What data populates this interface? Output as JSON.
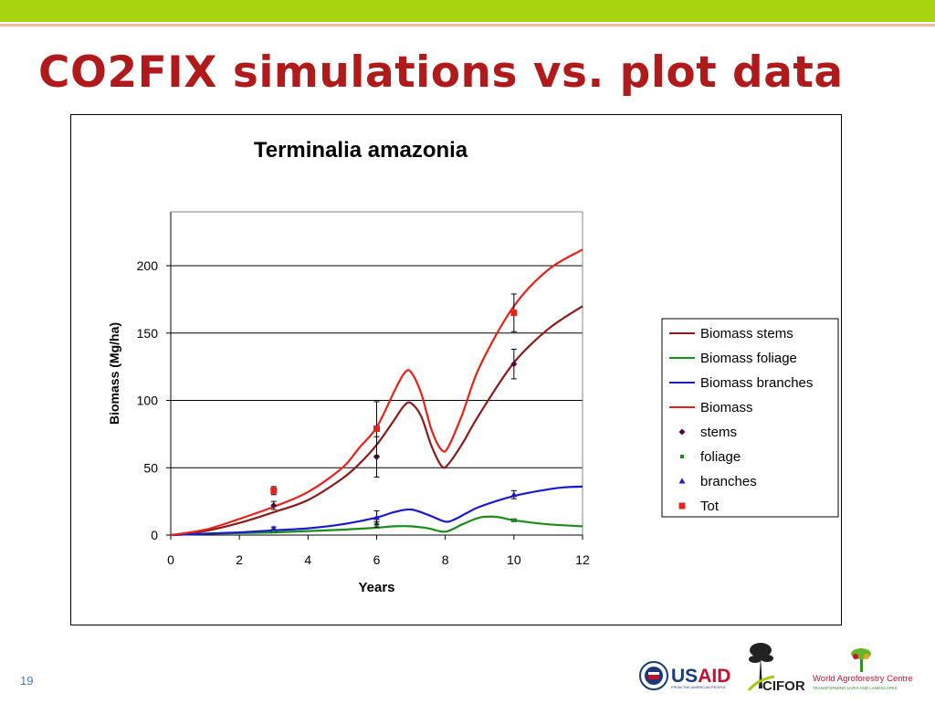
{
  "slide": {
    "title": "CO2FIX simulations vs. plot data",
    "page_number": "19",
    "accent_color": "#a8d40f",
    "title_color": "#b01a1a"
  },
  "logos": {
    "usaid": "USAID",
    "usaid_sub": "FROM THE AMERICAN PEOPLE",
    "cifor": "CIFOR",
    "icraf": "World Agroforestry Centre",
    "icraf_sub": "TRANSFORMING LIVES AND LANDSCAPES"
  },
  "chart_data": {
    "type": "line",
    "title": "Terminalia amazonia",
    "xlabel": "Years",
    "ylabel": "Biomass (Mg/ha)",
    "xlim": [
      0,
      12
    ],
    "ylim": [
      0,
      240
    ],
    "xticks": [
      0,
      2,
      4,
      6,
      8,
      10,
      12
    ],
    "yticks": [
      0,
      50,
      100,
      150,
      200
    ],
    "grid": "horizontal",
    "legend_position": "right",
    "series": [
      {
        "name": "Biomass stems",
        "kind": "line",
        "color": "#8b1a1a",
        "x": [
          0,
          1,
          2,
          3,
          4,
          5,
          5.5,
          6,
          6.5,
          6.8,
          7,
          7.3,
          7.6,
          7.9,
          8.1,
          8.5,
          9,
          10,
          11,
          12
        ],
        "y": [
          0,
          3,
          9,
          17,
          26,
          42,
          53,
          67,
          85,
          96,
          98,
          88,
          66,
          51,
          53,
          68,
          90,
          128,
          153,
          170
        ]
      },
      {
        "name": "Biomass foliage",
        "kind": "line",
        "color": "#1a8c1a",
        "x": [
          0,
          1,
          2,
          3,
          4,
          5,
          6,
          6.5,
          7,
          7.5,
          8,
          8.5,
          9,
          9.5,
          10,
          11,
          12
        ],
        "y": [
          0,
          1,
          1.5,
          2,
          3,
          4,
          5.5,
          6.5,
          6.5,
          5,
          2.5,
          8,
          13,
          13.5,
          11,
          8,
          6.5
        ]
      },
      {
        "name": "Biomass branches",
        "kind": "line",
        "color": "#1a1acc",
        "x": [
          0,
          1,
          2,
          3,
          4,
          5,
          6,
          6.5,
          7,
          7.5,
          8,
          8.3,
          8.6,
          9,
          10,
          11,
          11.5,
          12
        ],
        "y": [
          0,
          1,
          2,
          3.5,
          5,
          8,
          13,
          17,
          19,
          15,
          10,
          12,
          16,
          21,
          29,
          34,
          35.5,
          36
        ]
      },
      {
        "name": "Biomass",
        "kind": "line",
        "color": "#e8221a",
        "x": [
          0,
          1,
          2,
          3,
          4,
          5,
          5.5,
          6,
          6.5,
          6.8,
          7,
          7.3,
          7.6,
          7.9,
          8.1,
          8.5,
          9,
          10,
          11,
          12
        ],
        "y": [
          0,
          4,
          12,
          21,
          32,
          50,
          65,
          80,
          106,
          120,
          121,
          105,
          78,
          63,
          66,
          90,
          125,
          170,
          197,
          212
        ]
      },
      {
        "name": "stems",
        "kind": "marker",
        "marker": "diamond",
        "color": "#4a0a3a",
        "x": [
          3,
          6,
          10
        ],
        "y": [
          22,
          58,
          127
        ],
        "err": [
          3,
          15,
          11
        ]
      },
      {
        "name": "foliage",
        "kind": "marker",
        "marker": "square-small",
        "color": "#1a8c1a",
        "x": [
          3,
          6,
          10
        ],
        "y": [
          3,
          8,
          11
        ],
        "err": [
          1,
          2,
          1
        ]
      },
      {
        "name": "branches",
        "kind": "marker",
        "marker": "triangle",
        "color": "#1a1acc",
        "x": [
          3,
          6,
          10
        ],
        "y": [
          5,
          13,
          30
        ],
        "err": [
          1,
          5,
          3
        ]
      },
      {
        "name": "Tot",
        "kind": "marker",
        "marker": "square",
        "color": "#e8221a",
        "x": [
          3,
          6,
          10
        ],
        "y": [
          33,
          79,
          165
        ],
        "err": [
          3,
          20,
          14
        ]
      }
    ]
  }
}
